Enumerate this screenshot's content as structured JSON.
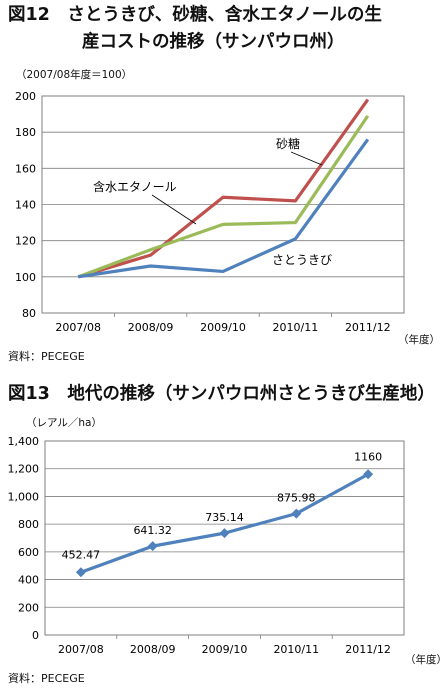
{
  "charts": [
    {
      "title_line1": "図12　さとうきび、砂糖、含水エタノールの生",
      "title_line2": "産コストの推移（サンパウロ州）",
      "unit": "（2007/08年度＝100）",
      "xunit": "（年度）",
      "source": "資料：PECEGE"
    },
    {
      "title_line1": "図13　地代の推移（サンパウロ州さとうきび生産地）",
      "unit": "（レアル／ha）",
      "xunit": "（年度）",
      "source": "資料：PECEGE"
    }
  ],
  "chart_data": [
    {
      "type": "line",
      "categories": [
        "2007/08",
        "2008/09",
        "2009/10",
        "2010/11",
        "2011/12"
      ],
      "series": [
        {
          "name": "砂糖",
          "values": [
            100,
            112,
            144,
            142,
            198
          ],
          "color": "#c0504d"
        },
        {
          "name": "含水エタノール",
          "values": [
            100,
            115,
            129,
            130,
            189
          ],
          "color": "#9bbb59"
        },
        {
          "name": "さとうきび",
          "values": [
            100,
            106,
            103,
            121,
            176
          ],
          "color": "#4f81bd"
        }
      ],
      "ylim": [
        80,
        200
      ],
      "yticks": [
        "80",
        "100",
        "120",
        "140",
        "160",
        "180",
        "200"
      ],
      "grid": true,
      "legend": "inline-labels"
    },
    {
      "type": "line",
      "categories": [
        "2007/08",
        "2008/09",
        "2009/10",
        "2010/11",
        "2011/12"
      ],
      "series": [
        {
          "values": [
            452.47,
            641.32,
            735.14,
            875.98,
            1160
          ],
          "color": "#4f81bd"
        }
      ],
      "data_labels": [
        "452.47",
        "641.32",
        "735.14",
        "875.98",
        "1160"
      ],
      "ylim": [
        0,
        1400
      ],
      "yticks": [
        "0",
        "200",
        "400",
        "600",
        "800",
        "1,000",
        "1,200",
        "1,400"
      ],
      "grid": true,
      "markers": "diamond"
    }
  ]
}
